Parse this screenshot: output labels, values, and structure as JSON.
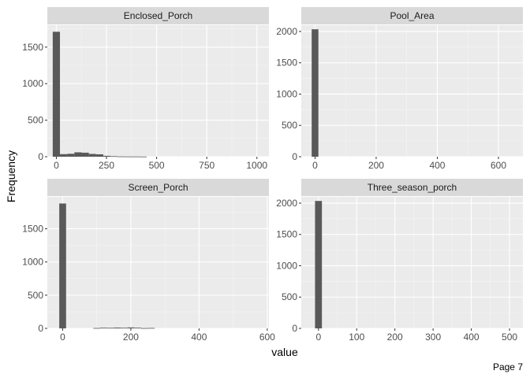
{
  "footer": {
    "page_label": "Page 7"
  },
  "chart_data": {
    "type": "bar",
    "xlabel": "value",
    "ylabel": "Frequency",
    "grid": true,
    "colors": {
      "panel": "#EBEBEB",
      "strip": "#D9D9D9",
      "bar": "#595959",
      "grid_major": "#FFFFFF",
      "grid_minor": "#F5F5F5"
    },
    "facets": [
      {
        "name": "Enclosed_Porch",
        "xlim": [
          -45,
          1060
        ],
        "ylim": [
          0,
          1800
        ],
        "xticks": [
          0,
          250,
          500,
          750,
          1000
        ],
        "yticks": [
          0,
          500,
          1000,
          1500
        ],
        "bins": [
          {
            "x0": -18,
            "x1": 18,
            "count": 1710
          },
          {
            "x0": 18,
            "x1": 54,
            "count": 35
          },
          {
            "x0": 54,
            "x1": 90,
            "count": 40
          },
          {
            "x0": 90,
            "x1": 126,
            "count": 60
          },
          {
            "x0": 126,
            "x1": 162,
            "count": 55
          },
          {
            "x0": 162,
            "x1": 198,
            "count": 38
          },
          {
            "x0": 198,
            "x1": 234,
            "count": 33
          },
          {
            "x0": 234,
            "x1": 270,
            "count": 12
          },
          {
            "x0": 270,
            "x1": 306,
            "count": 7
          },
          {
            "x0": 306,
            "x1": 342,
            "count": 4
          },
          {
            "x0": 342,
            "x1": 378,
            "count": 3
          },
          {
            "x0": 378,
            "x1": 414,
            "count": 3
          },
          {
            "x0": 414,
            "x1": 450,
            "count": 2
          }
        ]
      },
      {
        "name": "Pool_Area",
        "xlim": [
          -45,
          680
        ],
        "ylim": [
          0,
          2100
        ],
        "xticks": [
          0,
          200,
          400,
          600
        ],
        "yticks": [
          0,
          500,
          1000,
          1500,
          2000
        ],
        "bins": [
          {
            "x0": -11,
            "x1": 11,
            "count": 2035
          }
        ]
      },
      {
        "name": "Screen_Porch",
        "xlim": [
          -45,
          605
        ],
        "ylim": [
          0,
          1980
        ],
        "xticks": [
          0,
          200,
          400,
          600
        ],
        "yticks": [
          0,
          500,
          1000,
          1500
        ],
        "bins": [
          {
            "x0": -10,
            "x1": 10,
            "count": 1880
          },
          {
            "x0": 90,
            "x1": 110,
            "count": 5
          },
          {
            "x0": 110,
            "x1": 130,
            "count": 10
          },
          {
            "x0": 130,
            "x1": 150,
            "count": 8
          },
          {
            "x0": 150,
            "x1": 170,
            "count": 12
          },
          {
            "x0": 170,
            "x1": 190,
            "count": 9
          },
          {
            "x0": 190,
            "x1": 210,
            "count": 14
          },
          {
            "x0": 210,
            "x1": 230,
            "count": 10
          },
          {
            "x0": 230,
            "x1": 250,
            "count": 4
          },
          {
            "x0": 250,
            "x1": 270,
            "count": 6
          }
        ]
      },
      {
        "name": "Three_season_porch",
        "xlim": [
          -45,
          535
        ],
        "ylim": [
          0,
          2100
        ],
        "xticks": [
          0,
          100,
          200,
          300,
          400,
          500
        ],
        "yticks": [
          0,
          500,
          1000,
          1500,
          2000
        ],
        "bins": [
          {
            "x0": -9,
            "x1": 9,
            "count": 2035
          }
        ]
      }
    ]
  }
}
